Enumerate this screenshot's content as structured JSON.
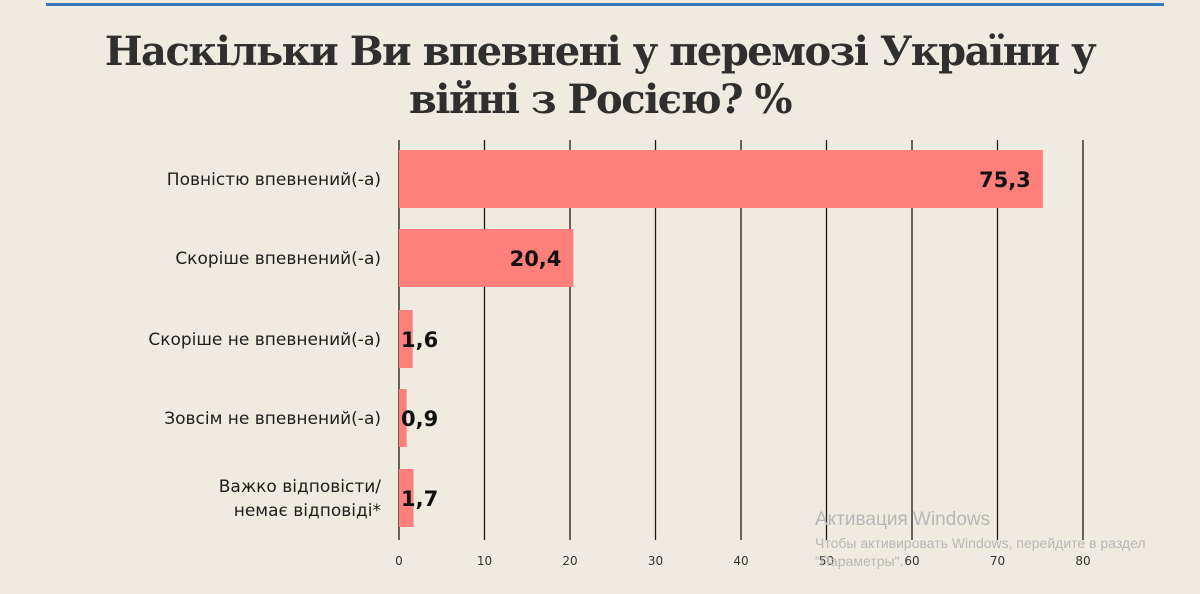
{
  "title_lines": [
    "Наскільки Ви впевнені у перемозі України у",
    "війні з Росією? %"
  ],
  "chart_data": {
    "type": "bar",
    "orientation": "horizontal",
    "title": "Наскільки Ви впевнені у перемозі України у війні з Росією? %",
    "categories": [
      [
        "Повністю впевнений(-а)"
      ],
      [
        "Скоріше впевнений(-а)"
      ],
      [
        "Скоріше не впевнений(-а)"
      ],
      [
        "Зовсім не впевнений(-а)"
      ],
      [
        "Важко відповісти/",
        "немає відповіді*"
      ]
    ],
    "values": [
      75.3,
      20.4,
      1.6,
      0.9,
      1.7
    ],
    "value_labels": [
      "75,3",
      "20,4",
      "1,6",
      "0,9",
      "1,7"
    ],
    "xlim": [
      0,
      80
    ],
    "xticks": [
      0,
      10,
      20,
      30,
      40,
      50,
      60,
      70,
      80
    ],
    "grid": true,
    "bar_color": "#ff7f7b",
    "grid_color": "#1a1a1a"
  },
  "watermark": {
    "line1": "Активация Windows",
    "line2": "Чтобы активировать Windows, перейдите в раздел \"Параметры\"."
  },
  "colors": {
    "background": "#f0ebe1",
    "accent_rule": "#3a79b8"
  }
}
